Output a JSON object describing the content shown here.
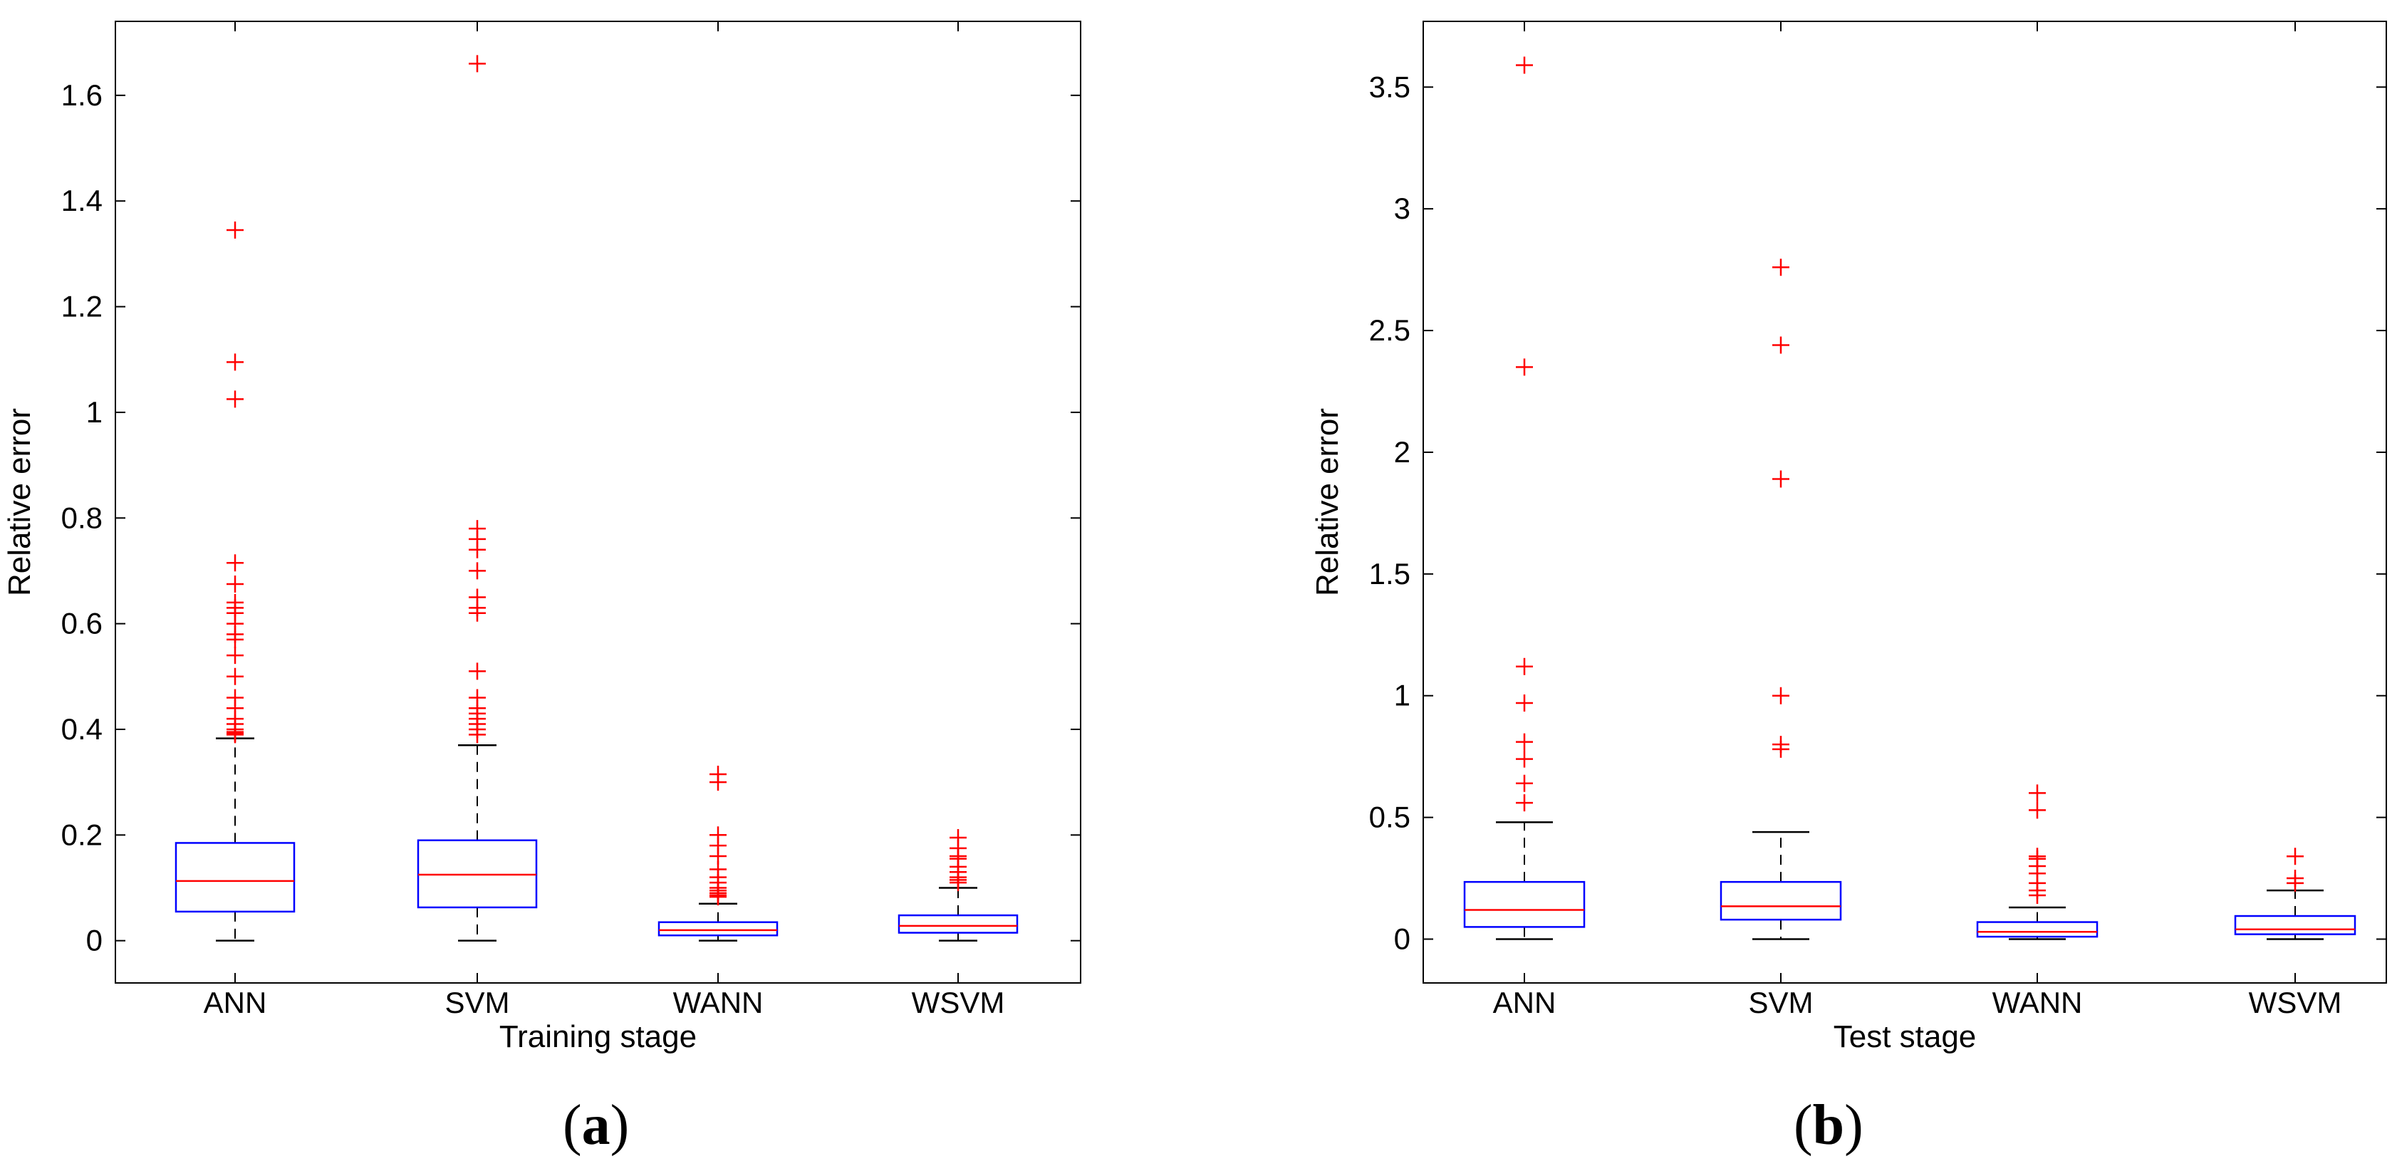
{
  "chart_data": [
    {
      "type": "boxplot",
      "panel_label": "a",
      "xlabel": "Training stage",
      "ylabel": "Relative error",
      "ylim": [
        -0.08,
        1.74
      ],
      "yticks": [
        0,
        0.2,
        0.4,
        0.6,
        0.8,
        1,
        1.2,
        1.4,
        1.6
      ],
      "ytick_labels": [
        "0",
        "0.2",
        "0.4",
        "0.6",
        "0.8",
        "1",
        "1.2",
        "1.4",
        "1.6"
      ],
      "categories": [
        "ANN",
        "SVM",
        "WANN",
        "WSVM"
      ],
      "boxes": [
        {
          "name": "ANN",
          "whisker_low": 0.0,
          "q1": 0.055,
          "median": 0.113,
          "q3": 0.185,
          "whisker_high": 0.383,
          "outliers": [
            0.39,
            0.392,
            0.395,
            0.4,
            0.41,
            0.42,
            0.44,
            0.46,
            0.5,
            0.54,
            0.57,
            0.58,
            0.6,
            0.62,
            0.63,
            0.64,
            0.675,
            0.715,
            1.025,
            1.095,
            1.345
          ]
        },
        {
          "name": "SVM",
          "whisker_low": 0.0,
          "q1": 0.063,
          "median": 0.125,
          "q3": 0.19,
          "whisker_high": 0.37,
          "outliers": [
            0.39,
            0.4,
            0.41,
            0.42,
            0.43,
            0.44,
            0.46,
            0.51,
            0.62,
            0.63,
            0.65,
            0.7,
            0.74,
            0.76,
            0.78,
            1.66
          ]
        },
        {
          "name": "WANN",
          "whisker_low": 0.0,
          "q1": 0.01,
          "median": 0.02,
          "q3": 0.035,
          "whisker_high": 0.07,
          "outliers": [
            0.083,
            0.086,
            0.09,
            0.095,
            0.1,
            0.11,
            0.12,
            0.135,
            0.16,
            0.18,
            0.2,
            0.3,
            0.315
          ]
        },
        {
          "name": "WSVM",
          "whisker_low": 0.0,
          "q1": 0.015,
          "median": 0.028,
          "q3": 0.048,
          "whisker_high": 0.1,
          "outliers": [
            0.11,
            0.115,
            0.12,
            0.13,
            0.14,
            0.155,
            0.16,
            0.175,
            0.195
          ]
        }
      ]
    },
    {
      "type": "boxplot",
      "panel_label": "b",
      "xlabel": "Test stage",
      "ylabel": "Relative error",
      "ylim": [
        -0.18,
        3.77
      ],
      "yticks": [
        0,
        0.5,
        1,
        1.5,
        2,
        2.5,
        3,
        3.5
      ],
      "ytick_labels": [
        "0",
        "0.5",
        "1",
        "1.5",
        "2",
        "2.5",
        "3",
        "3.5"
      ],
      "categories": [
        "ANN",
        "SVM",
        "WANN",
        "WSVM"
      ],
      "boxes": [
        {
          "name": "ANN",
          "whisker_low": 0.0,
          "q1": 0.05,
          "median": 0.12,
          "q3": 0.235,
          "whisker_high": 0.48,
          "outliers": [
            0.56,
            0.64,
            0.74,
            0.81,
            0.97,
            1.12,
            2.35,
            3.59
          ]
        },
        {
          "name": "SVM",
          "whisker_low": 0.0,
          "q1": 0.08,
          "median": 0.135,
          "q3": 0.235,
          "whisker_high": 0.44,
          "outliers": [
            0.78,
            0.8,
            1.0,
            1.89,
            2.44,
            2.76
          ]
        },
        {
          "name": "WANN",
          "whisker_low": 0.0,
          "q1": 0.01,
          "median": 0.03,
          "q3": 0.07,
          "whisker_high": 0.13,
          "outliers": [
            0.18,
            0.2,
            0.23,
            0.27,
            0.3,
            0.33,
            0.34,
            0.53,
            0.6
          ]
        },
        {
          "name": "WSVM",
          "whisker_low": 0.0,
          "q1": 0.02,
          "median": 0.04,
          "q3": 0.095,
          "whisker_high": 0.2,
          "outliers": [
            0.23,
            0.25,
            0.34
          ]
        }
      ]
    }
  ]
}
